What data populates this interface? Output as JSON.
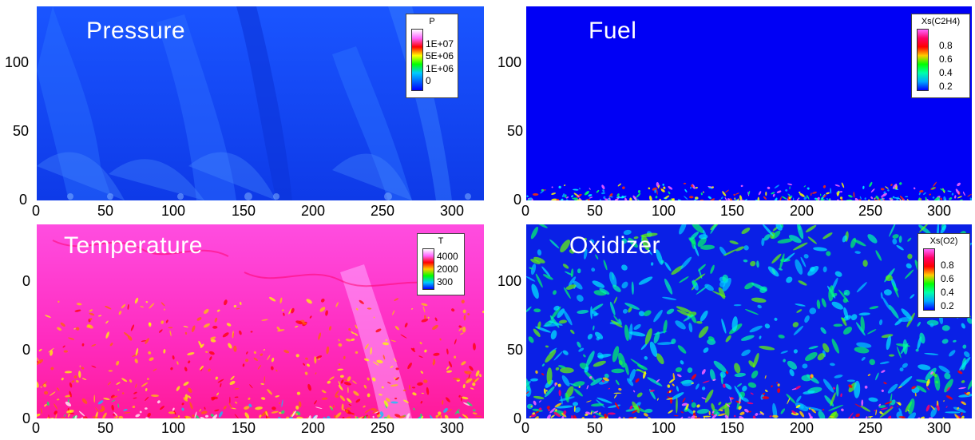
{
  "panels": [
    {
      "id": "pressure",
      "title": "Pressure",
      "legend": {
        "title": "P",
        "labels": [
          "1E+07",
          "5E+06",
          "1E+06",
          "0"
        ]
      },
      "xticks": [
        "0",
        "50",
        "100",
        "150",
        "200",
        "250",
        "300"
      ],
      "yticks": [
        "0",
        "50",
        "100"
      ],
      "background": "#0a3cf0"
    },
    {
      "id": "fuel",
      "title": "Fuel",
      "legend": {
        "title": "Xs(C2H4)",
        "labels": [
          "0.8",
          "0.6",
          "0.4",
          "0.2"
        ]
      },
      "xticks": [
        "0",
        "50",
        "100",
        "150",
        "200",
        "250",
        "300"
      ],
      "yticks": [
        "0",
        "50",
        "100"
      ],
      "background": "#0000ff"
    },
    {
      "id": "temperature",
      "title": "Temperature",
      "legend": {
        "title": "T",
        "labels": [
          "4000",
          "2000",
          "300"
        ]
      },
      "xticks": [
        "0",
        "50",
        "100",
        "150",
        "200",
        "250",
        "300"
      ],
      "yticks": [
        "0",
        "0",
        "0"
      ],
      "background": "#ff33cc"
    },
    {
      "id": "oxidizer",
      "title": "Oxidizer",
      "legend": {
        "title": "Xs(O2)",
        "labels": [
          "0.8",
          "0.6",
          "0.4",
          "0.2"
        ]
      },
      "xticks": [
        "0",
        "50",
        "100",
        "150",
        "200",
        "250",
        "300"
      ],
      "yticks": [
        "0",
        "50",
        "100"
      ],
      "background": "#0a1ee8"
    }
  ],
  "colors": {
    "colormap": [
      "#ffffff",
      "#ff66ff",
      "#ff0066",
      "#ff0000",
      "#ff9900",
      "#ffff00",
      "#00ff00",
      "#00ffaa",
      "#00aaff",
      "#0000ff",
      "#000099"
    ]
  }
}
